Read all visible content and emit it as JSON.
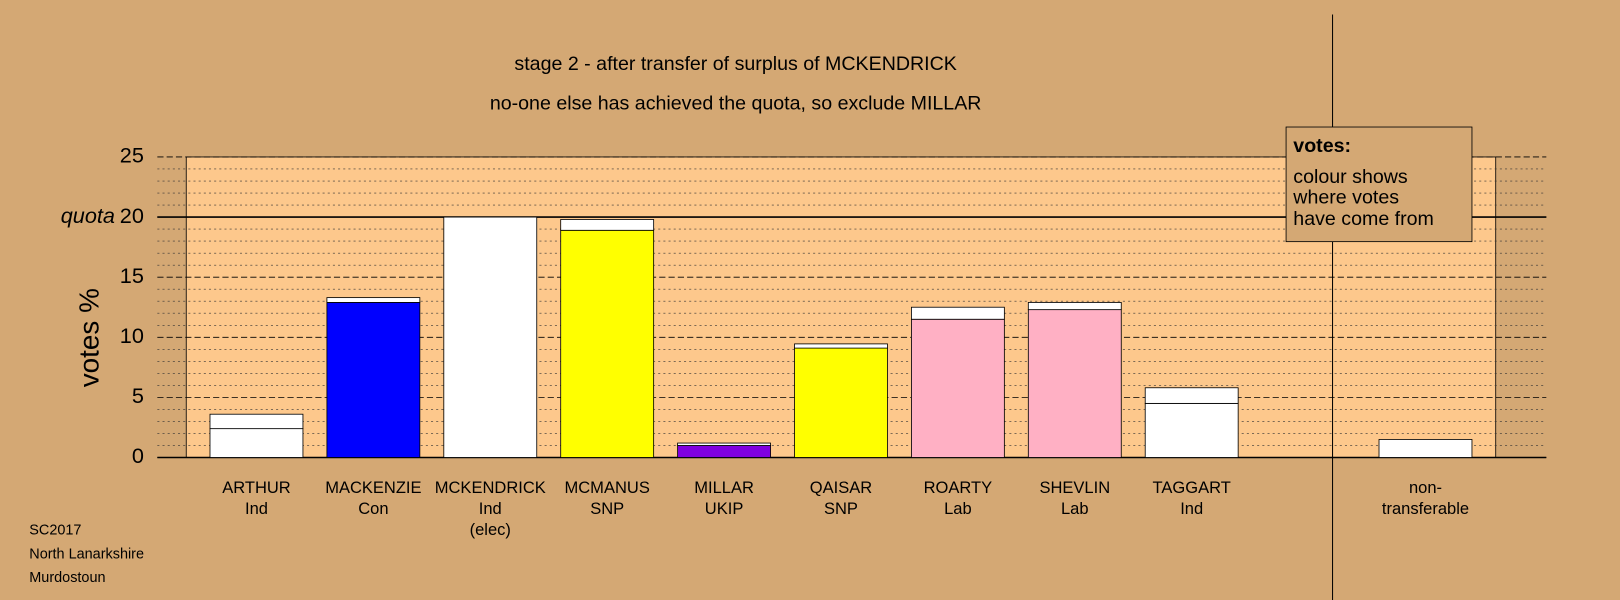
{
  "chart_data": {
    "type": "bar",
    "title": "stage 2 - after transfer of surplus of MCKENDRICK",
    "subtitle": "no-one else has achieved the quota, so exclude MILLAR",
    "y_label": "votes %",
    "categories": [
      [
        "ARTHUR",
        "Ind"
      ],
      [
        "MACKENZIE",
        "Con"
      ],
      [
        "MCKENDRICK",
        "Ind",
        "(elec)"
      ],
      [
        "MCMANUS",
        "SNP"
      ],
      [
        "MILLAR",
        "UKIP"
      ],
      [
        "QAISAR",
        "SNP"
      ],
      [
        "ROARTY",
        "Lab"
      ],
      [
        "SHEVLIN",
        "Lab"
      ],
      [
        "TAGGART",
        "Ind"
      ],
      [
        "non-",
        "transferable"
      ]
    ],
    "series": [
      {
        "colors": [
          "#ffffff",
          "#0000ff",
          "#ffffff",
          "#ffff00",
          "#8000e0",
          "#ffff00",
          "#ffb0c4",
          "#ffb0c4",
          "#ffffff",
          "#ffffff"
        ],
        "values": [
          2.4,
          12.9,
          20,
          18.9,
          1.0,
          9.1,
          11.5,
          12.3,
          4.5,
          1.5
        ]
      },
      {
        "color": "#ffffff",
        "values": [
          1.2,
          0.4,
          0,
          0.9,
          0.2,
          0.35,
          1.0,
          0.6,
          1.3,
          null
        ]
      }
    ],
    "ylim": [
      0,
      25
    ],
    "yticks": [
      0,
      5,
      10,
      15,
      20,
      25
    ],
    "minor_yticks": [
      1,
      2,
      3,
      4,
      6,
      7,
      8,
      9,
      11,
      12,
      13,
      14,
      16,
      17,
      18,
      19,
      21,
      22,
      23,
      24
    ],
    "quota": 20,
    "quota_label": "quota",
    "note": {
      "title": "votes:",
      "lines": [
        "colour shows",
        "where votes",
        "have come from"
      ]
    },
    "footer": [
      "SC2017",
      "North Lanarkshire",
      "Murdostoun"
    ]
  }
}
